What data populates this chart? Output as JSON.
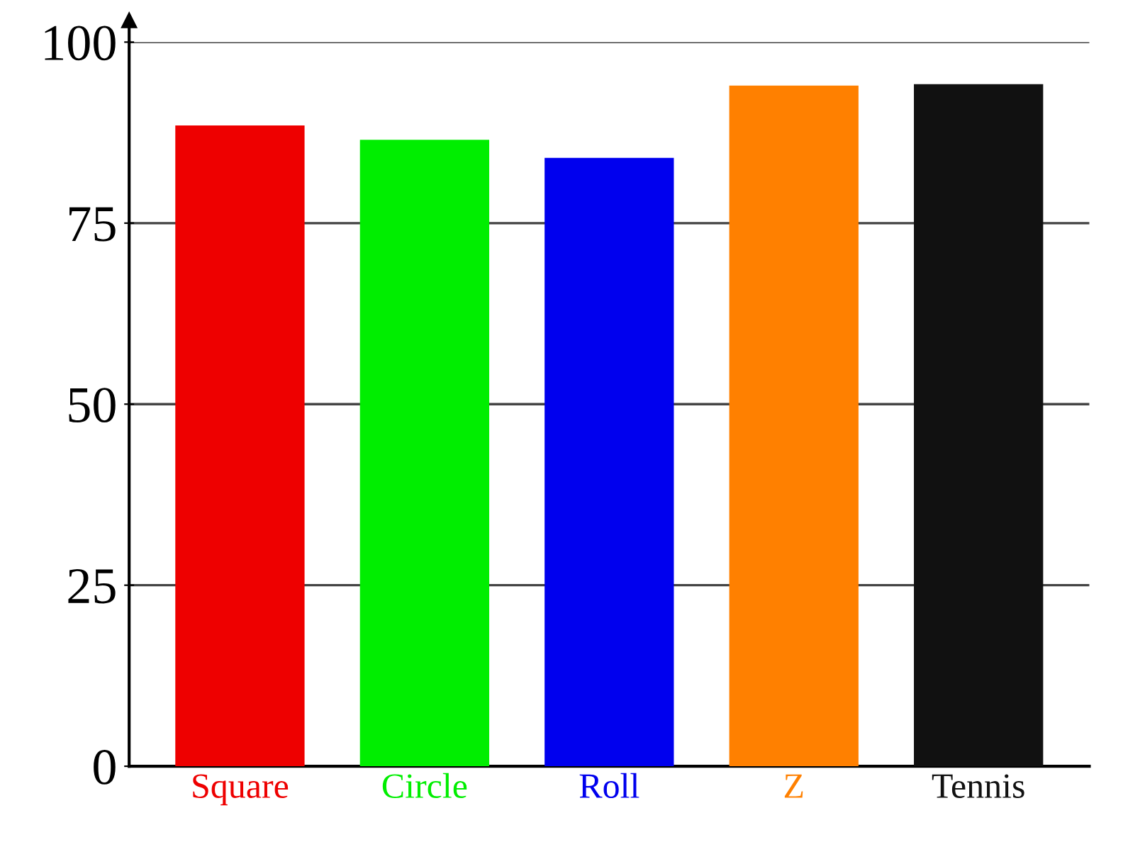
{
  "chart_data": {
    "type": "bar",
    "categories": [
      "Square",
      "Circle",
      "Roll",
      "Z",
      "Tennis"
    ],
    "values": [
      88.5,
      86.5,
      84,
      94,
      94.2
    ],
    "colors": [
      "#ee0000",
      "#00ee00",
      "#0000ee",
      "#ff8000",
      "#111111"
    ],
    "ylim": [
      0,
      100
    ],
    "yticks": [
      0,
      25,
      50,
      75,
      100
    ],
    "grid": "y"
  }
}
